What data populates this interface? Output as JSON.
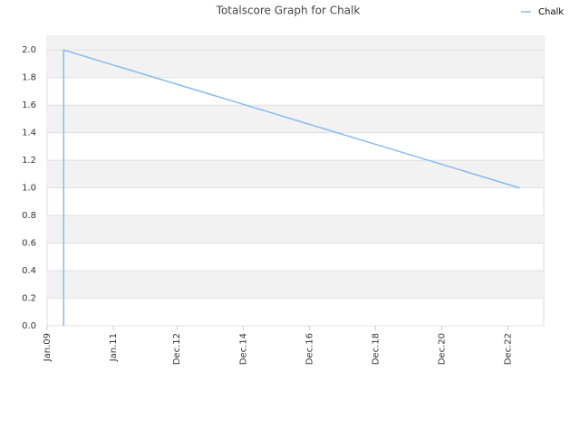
{
  "chart_data": {
    "type": "line",
    "title": "Totalscore Graph for Chalk",
    "x": [
      2009.5,
      2009.5,
      2023.27
    ],
    "series": [
      {
        "name": "Chalk",
        "color": "#88bbee",
        "values": [
          0,
          2,
          1
        ]
      }
    ],
    "xlim": [
      2009.0,
      2024.0
    ],
    "xticks": [
      {
        "value": 2009.0,
        "label": "Jan.09"
      },
      {
        "value": 2011.0,
        "label": "Jan.11"
      },
      {
        "value": 2012.92,
        "label": "Dec.12"
      },
      {
        "value": 2014.92,
        "label": "Dec.14"
      },
      {
        "value": 2016.92,
        "label": "Dec.16"
      },
      {
        "value": 2018.92,
        "label": "Dec.18"
      },
      {
        "value": 2020.92,
        "label": "Dec.20"
      },
      {
        "value": 2022.92,
        "label": "Dec.22"
      }
    ],
    "ylim": [
      0,
      2.1
    ],
    "yticks": [
      {
        "value": 0,
        "label": "0.0"
      },
      0.2,
      0.4,
      0.6,
      0.8,
      {
        "value": 1,
        "label": "1.0"
      },
      1.2,
      1.4,
      1.6,
      1.8,
      {
        "value": 2,
        "label": "2.0"
      }
    ],
    "grid": true,
    "legend": "top-right"
  }
}
